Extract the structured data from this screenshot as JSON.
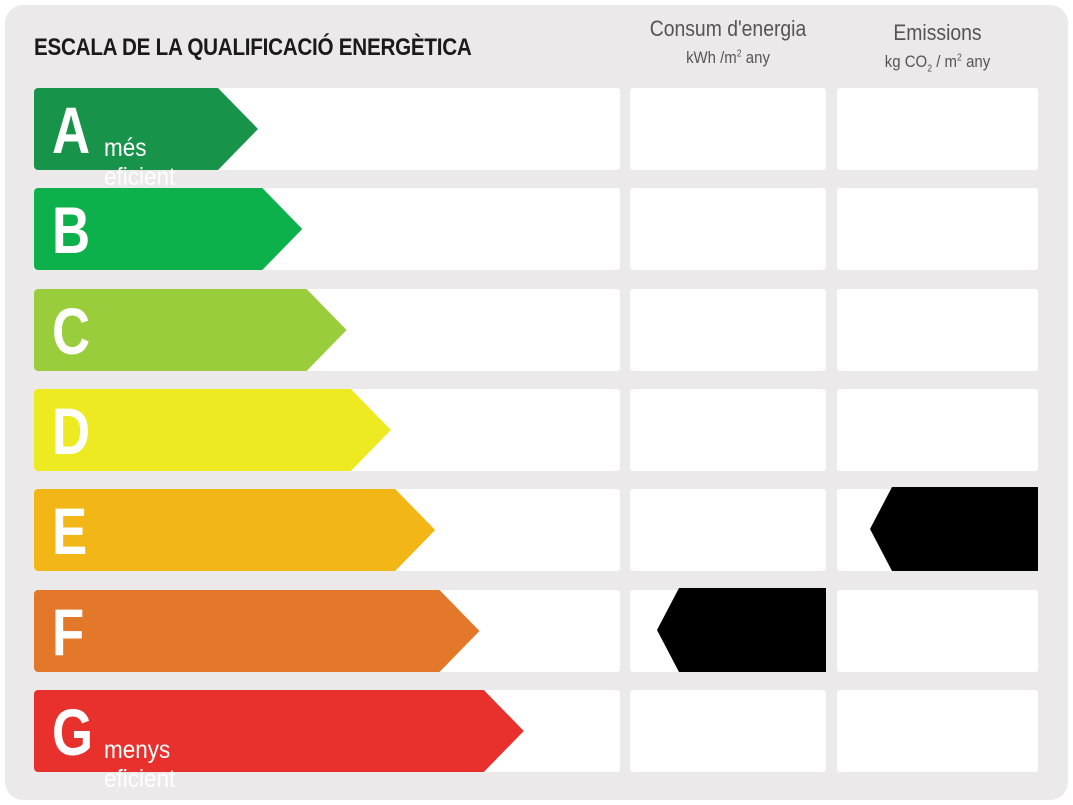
{
  "title": "ESCALA DE LA QUALIFICACIÓ ENERGÈTICA",
  "columns": {
    "consumption": {
      "title": "Consum d'energia",
      "unit_pre": "kWh /m",
      "unit_sup": "2",
      "unit_post": " any"
    },
    "emissions": {
      "title": "Emissions",
      "unit_pre": "kg CO",
      "unit_sub": "2",
      "unit_mid": "  / m",
      "unit_sup": "2",
      "unit_post": " any"
    }
  },
  "ratings": [
    {
      "letter": "A",
      "label": "més eficient",
      "color": "#17944a"
    },
    {
      "letter": "B",
      "label": "",
      "color": "#0db14b"
    },
    {
      "letter": "C",
      "label": "",
      "color": "#9acd3b"
    },
    {
      "letter": "D",
      "label": "",
      "color": "#eeea22"
    },
    {
      "letter": "E",
      "label": "",
      "color": "#f2b716"
    },
    {
      "letter": "F",
      "label": "",
      "color": "#e3782a"
    },
    {
      "letter": "G",
      "label": "menys eficient",
      "color": "#e8302d"
    }
  ],
  "indicators": {
    "consumption_rating": "F",
    "emissions_rating": "E",
    "marker_color": "#000000"
  }
}
